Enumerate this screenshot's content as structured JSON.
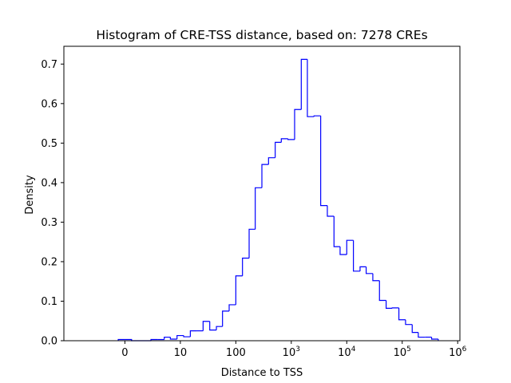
{
  "chart_data": {
    "type": "histogram",
    "title": "Histogram of CRE-TSS distance, based on: 7278 CREs",
    "xlabel": "Distance to TSS",
    "ylabel": "Density",
    "x_scale": "symlog",
    "xlim": [
      -1.1,
      6.04
    ],
    "ylim": [
      0,
      0.745
    ],
    "x_ticks": [
      {
        "value": 0,
        "label": "0"
      },
      {
        "value": 10,
        "label": "10"
      },
      {
        "value": 100,
        "label": "100"
      },
      {
        "value": 1000,
        "label": "10",
        "exp": "3"
      },
      {
        "value": 10000,
        "label": "10",
        "exp": "4"
      },
      {
        "value": 100000,
        "label": "10",
        "exp": "5"
      },
      {
        "value": 1000000,
        "label": "10",
        "exp": "6"
      }
    ],
    "y_ticks": [
      {
        "value": 0.0,
        "label": "0.0"
      },
      {
        "value": 0.1,
        "label": "0.1"
      },
      {
        "value": 0.2,
        "label": "0.2"
      },
      {
        "value": 0.3,
        "label": "0.3"
      },
      {
        "value": 0.4,
        "label": "0.4"
      },
      {
        "value": 0.5,
        "label": "0.5"
      },
      {
        "value": 0.6,
        "label": "0.6"
      },
      {
        "value": 0.7,
        "label": "0.7"
      }
    ],
    "series_color": "#0000ff",
    "grid": false,
    "bin_edges_log10": [
      0.0,
      0.12,
      0.47,
      0.59,
      0.71,
      0.82,
      0.94,
      1.06,
      1.18,
      1.29,
      1.41,
      1.53,
      1.65,
      1.76,
      1.88,
      2.0,
      2.12,
      2.24,
      2.35,
      2.47,
      2.59,
      2.71,
      2.82,
      2.94,
      3.06,
      3.18,
      3.29,
      3.41,
      3.53,
      3.65,
      3.77,
      3.88,
      4.0,
      4.12,
      4.24,
      4.35,
      4.47,
      4.59,
      4.71,
      4.82,
      4.94,
      5.06,
      5.18,
      5.29,
      5.41,
      5.53,
      5.65
    ],
    "densities": [
      0.003,
      0.0,
      0.003,
      0.003,
      0.009,
      0.004,
      0.013,
      0.01,
      0.025,
      0.025,
      0.049,
      0.027,
      0.036,
      0.075,
      0.091,
      0.164,
      0.209,
      0.282,
      0.387,
      0.446,
      0.463,
      0.502,
      0.511,
      0.509,
      0.585,
      0.712,
      0.567,
      0.569,
      0.342,
      0.315,
      0.238,
      0.218,
      0.254,
      0.176,
      0.187,
      0.17,
      0.152,
      0.102,
      0.082,
      0.083,
      0.053,
      0.041,
      0.021,
      0.009,
      0.009,
      0.004
    ],
    "zero_edge": [
      -0.12,
      0.0
    ]
  }
}
